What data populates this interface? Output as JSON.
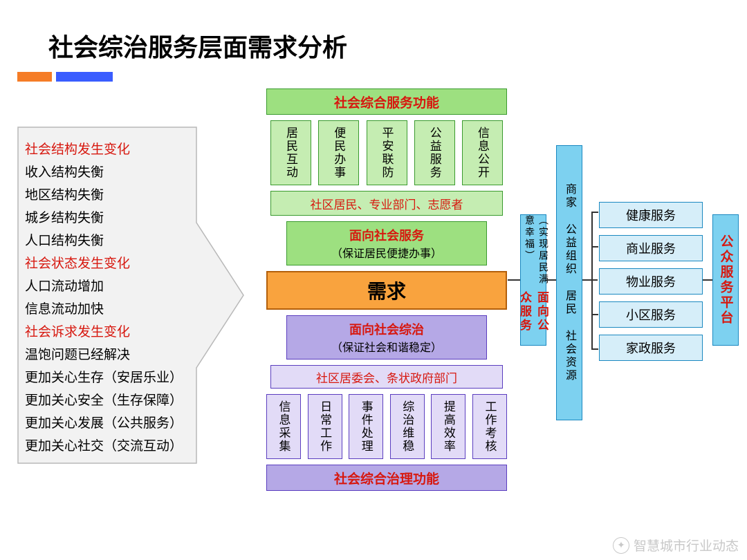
{
  "title": "社会综治服务层面需求分析",
  "accent_colors": {
    "orange": "#f57c26",
    "blue": "#3a5dff"
  },
  "left_items": [
    {
      "text": "社会结构发生变化",
      "red": true
    },
    {
      "text": "收入结构失衡",
      "red": false
    },
    {
      "text": "地区结构失衡",
      "red": false
    },
    {
      "text": "城乡结构失衡",
      "red": false
    },
    {
      "text": "人口结构失衡",
      "red": false
    },
    {
      "text": "社会状态发生变化",
      "red": true
    },
    {
      "text": "人口流动增加",
      "red": false
    },
    {
      "text": "信息流动加快",
      "red": false
    },
    {
      "text": "社会诉求发生变化",
      "red": true
    },
    {
      "text": "温饱问题已经解决",
      "red": false
    },
    {
      "text": "更加关心生存（安居乐业）",
      "red": false
    },
    {
      "text": "更加关心安全（生存保障）",
      "red": false
    },
    {
      "text": "更加关心发展（公共服务）",
      "red": false
    },
    {
      "text": "更加关心社交（交流互动）",
      "red": false
    }
  ],
  "center": {
    "top_header": "社会综合服务功能",
    "top_items": [
      "居民互动",
      "便民办事",
      "平安联防",
      "公益服务",
      "信息公开"
    ],
    "top_actors": "社区居民、专业部门、志愿者",
    "service_box": {
      "line1": "面向社会服务",
      "line2": "（保证居民便捷办事）"
    },
    "demand": "需求",
    "gov_box": {
      "line1": "面向社会综治",
      "line2": "（保证社会和谐稳定）"
    },
    "gov_actors": "社区居委会、条状政府部门",
    "bottom_items": [
      "信息采集",
      "日常工作",
      "事件处理",
      "综治维稳",
      "提高效率",
      "工作考核"
    ],
    "bottom_header": "社会综合治理功能"
  },
  "right": {
    "v1_line1": "面向公众服务",
    "v1_line2": "（实现居民满意幸福）",
    "v2": "商家 公益组织 居民 社会资源",
    "v3": "公众服务平台",
    "services": [
      "健康服务",
      "商业服务",
      "物业服务",
      "小区服务",
      "家政服务"
    ]
  },
  "colors": {
    "green_bg": "#9de080",
    "green_light": "#c5edb2",
    "green_border": "#3a9a2e",
    "purple_bg": "#b5a8e6",
    "purple_light": "#e2dbf7",
    "purple_border": "#5a3dbf",
    "orange_bg": "#f9a33e",
    "orange_border": "#b35f0a",
    "cyan_bg": "#7dd1f0",
    "cyan_light": "#d6eef9",
    "cyan_border": "#1a88c0",
    "red_text": "#d7180f"
  },
  "watermark": "智慧城市行业动态"
}
